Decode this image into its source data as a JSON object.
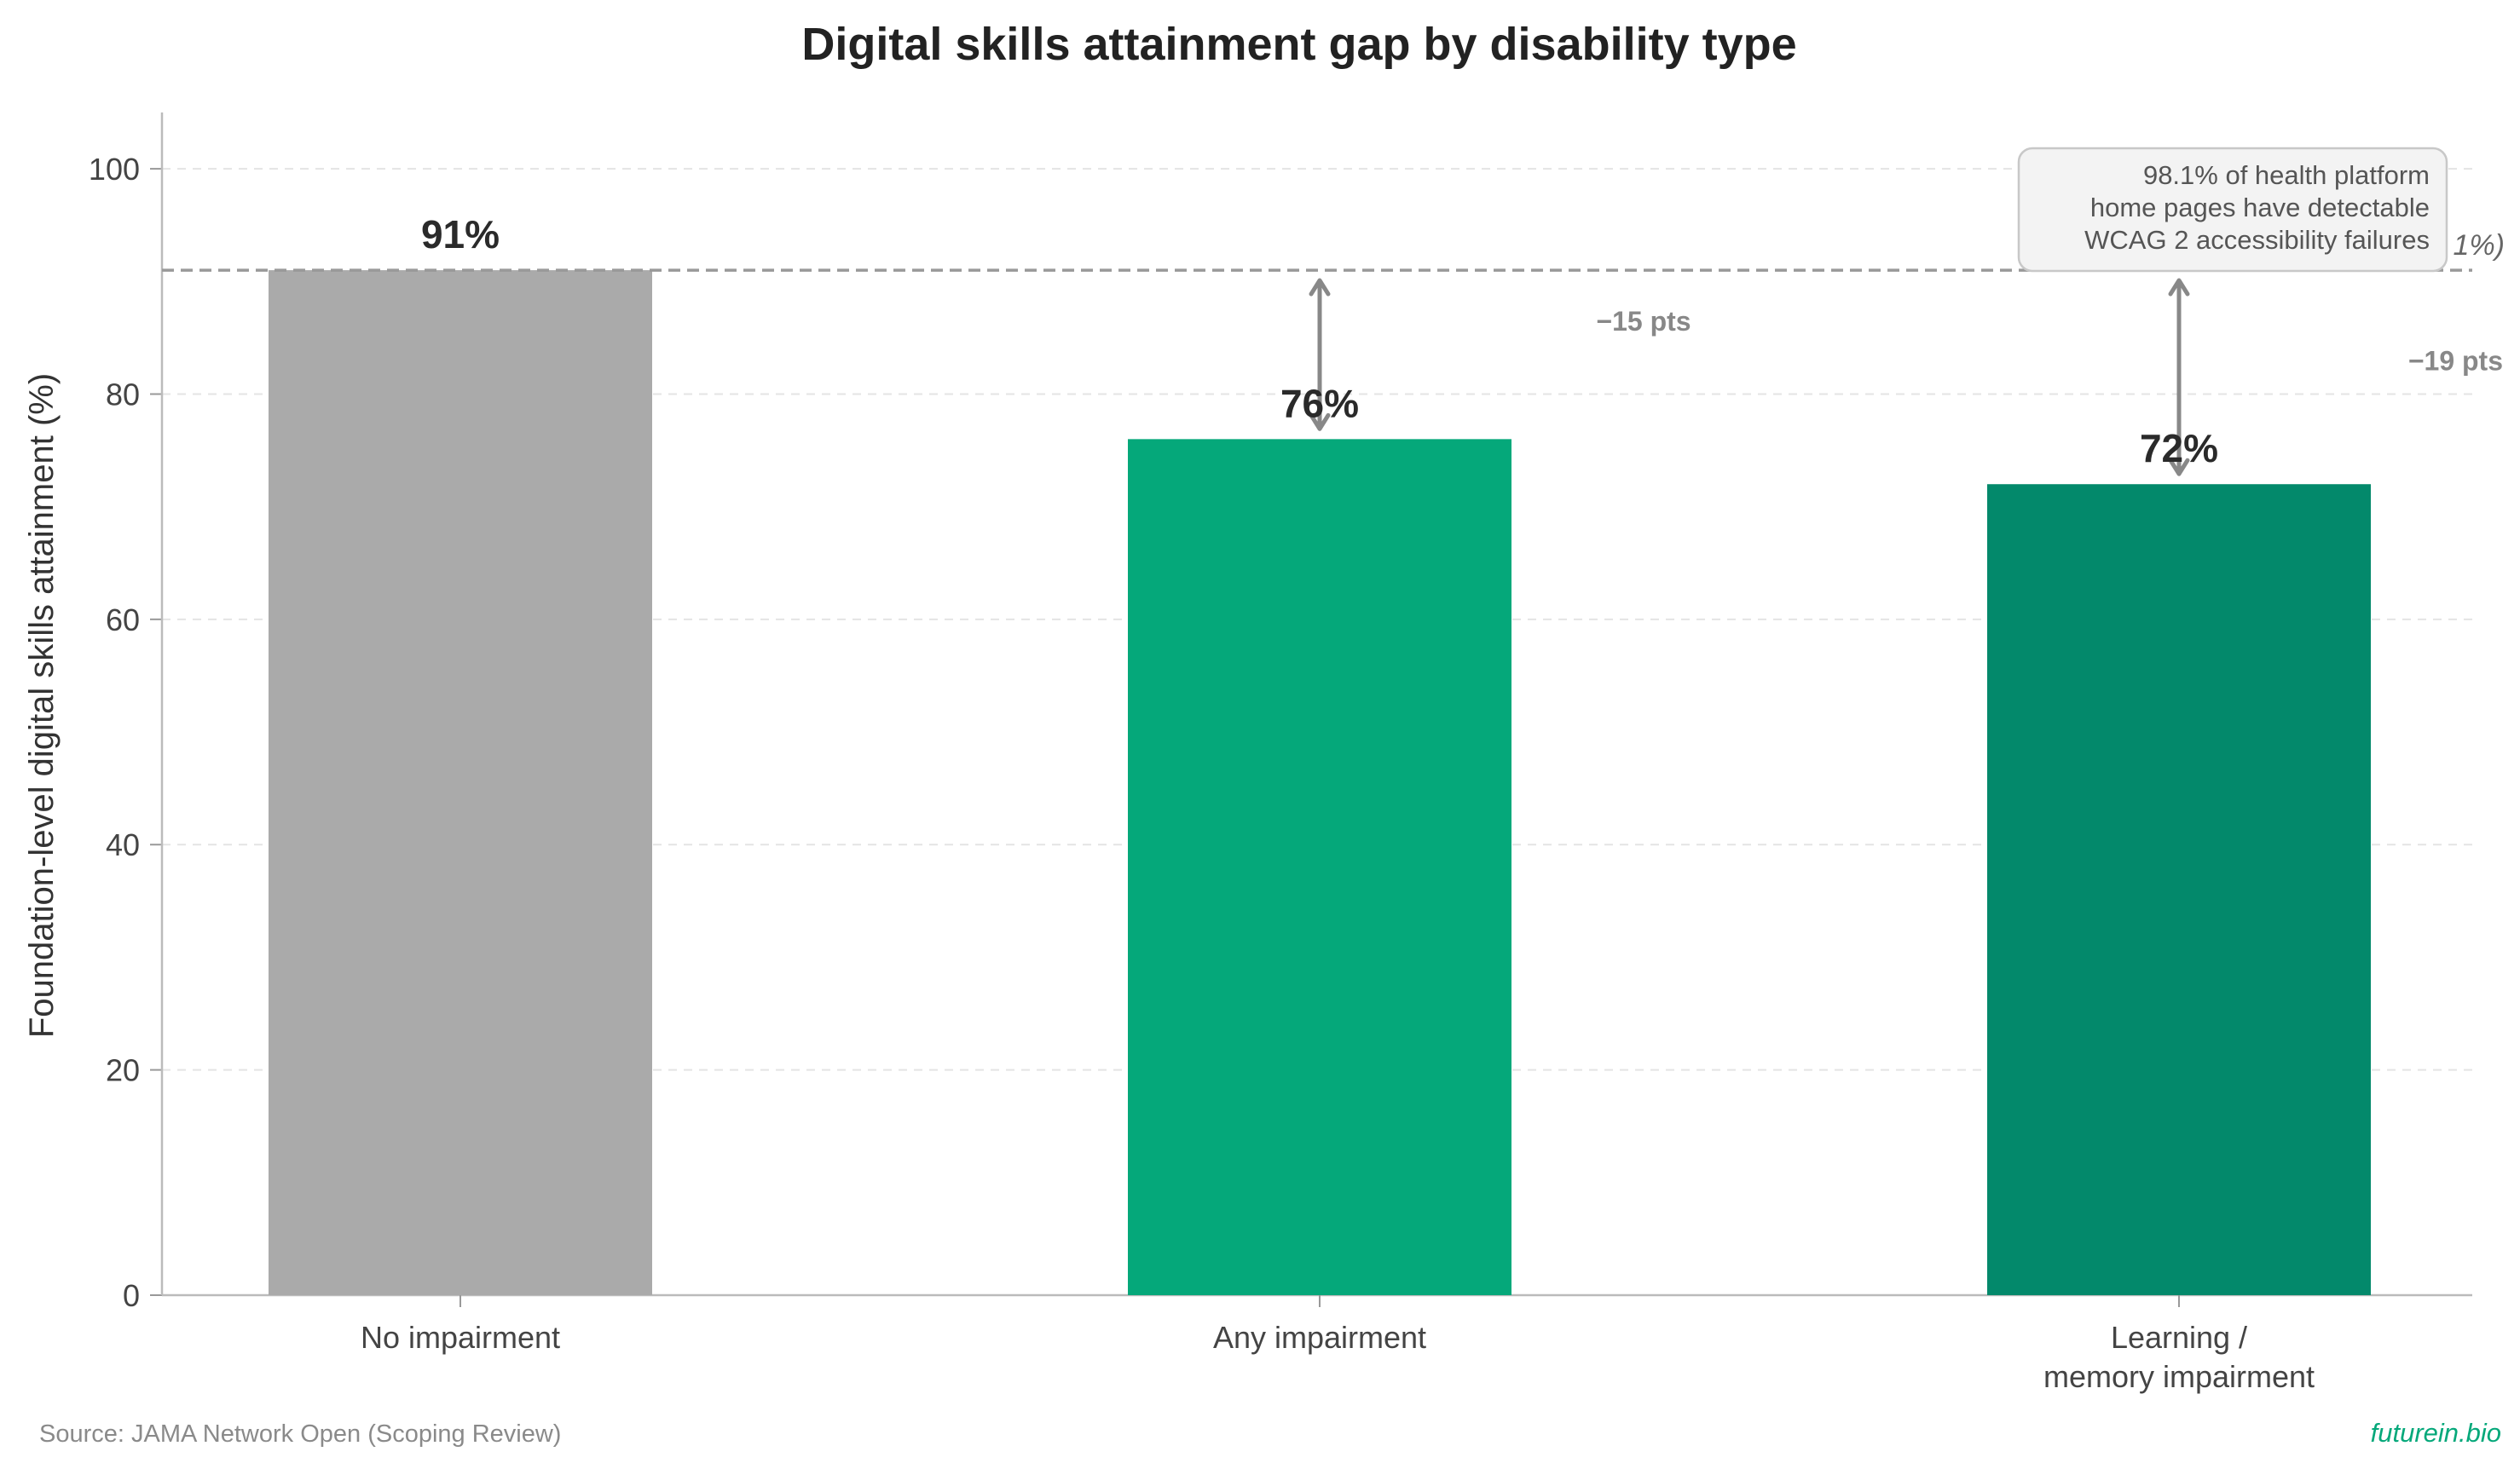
{
  "chart_data": {
    "type": "bar",
    "title": "Digital skills attainment gap by disability type",
    "ylabel": "Foundation-level digital skills attainment (%)",
    "xlabel": "",
    "ylim": [
      0,
      105
    ],
    "yticks": [
      "0",
      "20",
      "40",
      "60",
      "80",
      "100"
    ],
    "grid": "horizontal dashed",
    "categories": [
      [
        "No impairment"
      ],
      [
        "Any impairment"
      ],
      [
        "Learning /",
        "memory impairment"
      ]
    ],
    "values": [
      91,
      76,
      72
    ],
    "value_labels": [
      "91%",
      "76%",
      "72%"
    ],
    "colors": [
      "#aaaaaa",
      "#05a87a",
      "#03896b"
    ],
    "reference_line": {
      "value": 91,
      "label": "1%)"
    },
    "gaps": [
      {
        "category_index": 1,
        "from": 91,
        "to": 76,
        "label": "−15 pts"
      },
      {
        "category_index": 2,
        "from": 91,
        "to": 72,
        "label": "−19 pts"
      }
    ],
    "annotation": [
      "98.1% of health platform",
      "home pages have detectable",
      "WCAG 2 accessibility failures"
    ]
  },
  "footer": {
    "source": "Source: JAMA Network Open (Scoping Review)",
    "brand": "futurein.bio"
  }
}
